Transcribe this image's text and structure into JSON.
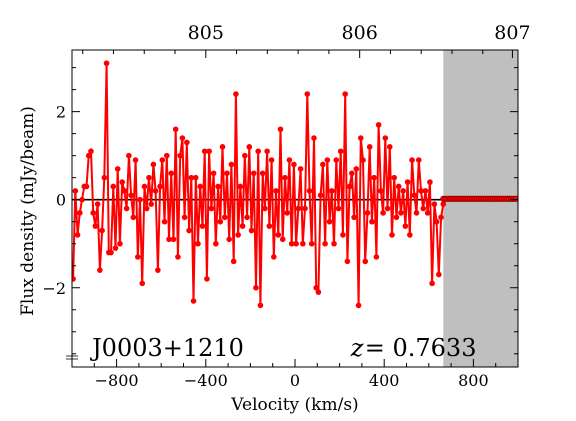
{
  "chart_data": {
    "type": "line",
    "xlabel": "Velocity (km/s)",
    "ylabel": "Flux density (mJy/beam)",
    "xlim": [
      -1000,
      1000
    ],
    "ylim": [
      -3.8,
      3.4
    ],
    "x_ticks": [
      -800,
      -400,
      0,
      400,
      800
    ],
    "y_ticks": [
      -2,
      0,
      2
    ],
    "x_tick_labels": [
      "−800",
      "−400",
      "0",
      "400",
      "800"
    ],
    "y_tick_labels": [
      "−2",
      "0",
      "2"
    ],
    "top_axis": {
      "tick_values": [
        805,
        806,
        807
      ],
      "tick_labels": [
        "805",
        "806",
        "807"
      ],
      "tick_velocity_positions": [
        -400,
        290,
        975
      ]
    },
    "shaded_region": {
      "x_start": 665,
      "x_end": 1000,
      "color": "#bfbfbf"
    },
    "zero_line": 0,
    "series": [
      {
        "color": "#ff0000",
        "marker": "circle",
        "points": [
          [
            -995,
            -1.8
          ],
          [
            -985,
            0.2
          ],
          [
            -975,
            -0.8
          ],
          [
            -965,
            -0.3
          ],
          [
            -955,
            0.0
          ],
          [
            -945,
            0.3
          ],
          [
            -935,
            0.3
          ],
          [
            -925,
            1.0
          ],
          [
            -915,
            1.1
          ],
          [
            -905,
            -0.3
          ],
          [
            -895,
            -0.6
          ],
          [
            -885,
            -0.1
          ],
          [
            -875,
            -1.6
          ],
          [
            -865,
            -0.7
          ],
          [
            -855,
            0.5
          ],
          [
            -845,
            3.1
          ],
          [
            -835,
            -1.2
          ],
          [
            -825,
            -1.2
          ],
          [
            -815,
            0.3
          ],
          [
            -805,
            -1.1
          ],
          [
            -795,
            0.7
          ],
          [
            -785,
            -1.0
          ],
          [
            -775,
            0.4
          ],
          [
            -765,
            0.2
          ],
          [
            -755,
            -0.2
          ],
          [
            -745,
            1.0
          ],
          [
            -735,
            0.1
          ],
          [
            -725,
            -0.4
          ],
          [
            -715,
            0.9
          ],
          [
            -705,
            -1.3
          ],
          [
            -695,
            0.0
          ],
          [
            -685,
            -1.9
          ],
          [
            -675,
            0.3
          ],
          [
            -665,
            -0.2
          ],
          [
            -655,
            0.5
          ],
          [
            -645,
            -0.1
          ],
          [
            -635,
            0.8
          ],
          [
            -625,
            0.2
          ],
          [
            -615,
            -1.6
          ],
          [
            -605,
            0.3
          ],
          [
            -595,
            0.9
          ],
          [
            -585,
            -0.5
          ],
          [
            -575,
            1.0
          ],
          [
            -565,
            -0.9
          ],
          [
            -555,
            0.6
          ],
          [
            -545,
            -0.9
          ],
          [
            -535,
            1.6
          ],
          [
            -525,
            -1.3
          ],
          [
            -515,
            1.0
          ],
          [
            -505,
            1.4
          ],
          [
            -495,
            -0.4
          ],
          [
            -485,
            1.3
          ],
          [
            -475,
            -0.7
          ],
          [
            -465,
            0.5
          ],
          [
            -455,
            -2.3
          ],
          [
            -445,
            0.5
          ],
          [
            -435,
            -1.0
          ],
          [
            -425,
            0.3
          ],
          [
            -415,
            -0.6
          ],
          [
            -405,
            1.1
          ],
          [
            -395,
            -1.8
          ],
          [
            -385,
            1.1
          ],
          [
            -375,
            -0.2
          ],
          [
            -365,
            0.6
          ],
          [
            -355,
            -1.0
          ],
          [
            -345,
            0.3
          ],
          [
            -335,
            -0.5
          ],
          [
            -325,
            1.2
          ],
          [
            -315,
            -0.4
          ],
          [
            -305,
            0.6
          ],
          [
            -295,
            -0.9
          ],
          [
            -285,
            0.8
          ],
          [
            -275,
            -1.4
          ],
          [
            -265,
            2.4
          ],
          [
            -255,
            -0.8
          ],
          [
            -245,
            0.3
          ],
          [
            -235,
            -0.6
          ],
          [
            -225,
            1.0
          ],
          [
            -215,
            -0.4
          ],
          [
            -205,
            1.2
          ],
          [
            -195,
            -0.7
          ],
          [
            -185,
            0.6
          ],
          [
            -175,
            -2.0
          ],
          [
            -165,
            1.1
          ],
          [
            -155,
            -2.4
          ],
          [
            -145,
            0.6
          ],
          [
            -135,
            -0.2
          ],
          [
            -125,
            1.1
          ],
          [
            -115,
            -0.6
          ],
          [
            -105,
            0.9
          ],
          [
            -95,
            -1.3
          ],
          [
            -85,
            0.2
          ],
          [
            -75,
            -0.8
          ],
          [
            -65,
            1.6
          ],
          [
            -55,
            -0.9
          ],
          [
            -45,
            0.5
          ],
          [
            -35,
            -0.3
          ],
          [
            -25,
            0.9
          ],
          [
            -15,
            -1.0
          ],
          [
            -5,
            0.8
          ],
          [
            5,
            -1.0
          ],
          [
            15,
            -0.2
          ],
          [
            25,
            0.7
          ],
          [
            35,
            -1.0
          ],
          [
            45,
            -0.2
          ],
          [
            55,
            2.4
          ],
          [
            65,
            0.2
          ],
          [
            75,
            -1.0
          ],
          [
            85,
            1.4
          ],
          [
            95,
            -2.0
          ],
          [
            105,
            -2.1
          ],
          [
            115,
            0.1
          ],
          [
            125,
            0.8
          ],
          [
            135,
            -1.0
          ],
          [
            145,
            0.9
          ],
          [
            155,
            -0.5
          ],
          [
            165,
            0.2
          ],
          [
            175,
            -1.0
          ],
          [
            185,
            0.9
          ],
          [
            195,
            -0.2
          ],
          [
            205,
            1.1
          ],
          [
            215,
            -0.8
          ],
          [
            225,
            2.4
          ],
          [
            235,
            -1.4
          ],
          [
            245,
            0.3
          ],
          [
            255,
            0.6
          ],
          [
            265,
            -0.4
          ],
          [
            275,
            0.7
          ],
          [
            285,
            -2.4
          ],
          [
            295,
            1.4
          ],
          [
            305,
            0.9
          ],
          [
            315,
            -1.4
          ],
          [
            325,
            -0.3
          ],
          [
            335,
            1.2
          ],
          [
            345,
            -0.5
          ],
          [
            355,
            0.5
          ],
          [
            365,
            -1.3
          ],
          [
            375,
            1.7
          ],
          [
            385,
            0.2
          ],
          [
            395,
            -0.3
          ],
          [
            405,
            1.4
          ],
          [
            415,
            -0.2
          ],
          [
            425,
            1.2
          ],
          [
            435,
            -0.8
          ],
          [
            445,
            0.5
          ],
          [
            455,
            -0.4
          ],
          [
            465,
            0.3
          ],
          [
            475,
            -0.3
          ],
          [
            485,
            0.2
          ],
          [
            495,
            -0.6
          ],
          [
            505,
            0.4
          ],
          [
            515,
            -0.8
          ],
          [
            525,
            0.9
          ],
          [
            535,
            0.1
          ],
          [
            545,
            -0.3
          ],
          [
            555,
            0.9
          ],
          [
            565,
            0.2
          ],
          [
            575,
            -0.2
          ],
          [
            585,
            0.2
          ],
          [
            595,
            -0.3
          ],
          [
            605,
            0.4
          ],
          [
            615,
            -1.9
          ],
          [
            625,
            -0.1
          ],
          [
            635,
            -0.5
          ],
          [
            645,
            -1.7
          ],
          [
            655,
            -0.4
          ],
          [
            665,
            -0.1
          ]
        ],
        "flat_segment": {
          "x_start": 665,
          "x_end": 1000,
          "y": 0.02,
          "step": 8
        }
      }
    ],
    "annotations": [
      {
        "text": "J0003+1210",
        "x": -910,
        "y": -3.55
      },
      {
        "prefix": "z",
        "text": " = 0.7633",
        "x": 250,
        "y": -3.55
      }
    ]
  }
}
